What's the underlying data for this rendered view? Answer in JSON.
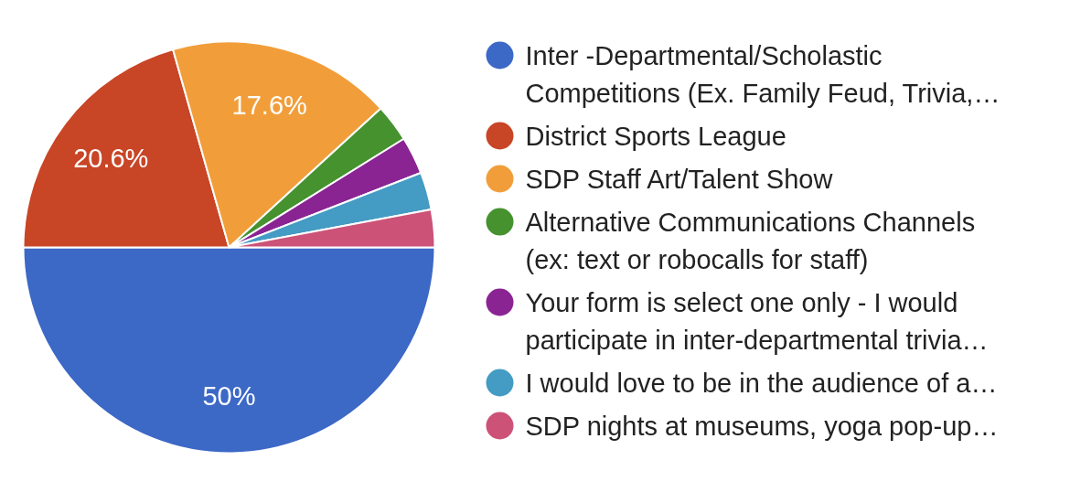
{
  "chart_data": {
    "type": "pie",
    "categories": [
      "Inter -Departmental/Scholastic Competitions (Ex. Family Feud, Trivia,…",
      "District Sports League",
      "SDP Staff Art/Talent Show",
      "Alternative Communications Channels (ex: text or robocalls for staff)",
      "Your form is select one only - I would participate in inter-departmental trivia…",
      "I would love to be in the audience of a…",
      "SDP nights at museums, yoga pop-up…"
    ],
    "values": [
      50,
      20.6,
      17.6,
      2.95,
      2.95,
      2.95,
      2.95
    ],
    "colors": [
      "#3c68c6",
      "#c84526",
      "#f19e3a",
      "#45922f",
      "#8b2493",
      "#449bc3",
      "#cc5278"
    ],
    "value_labels": [
      "50%",
      "20.6%",
      "17.6%",
      null,
      null,
      null,
      null
    ],
    "legend": "right"
  }
}
